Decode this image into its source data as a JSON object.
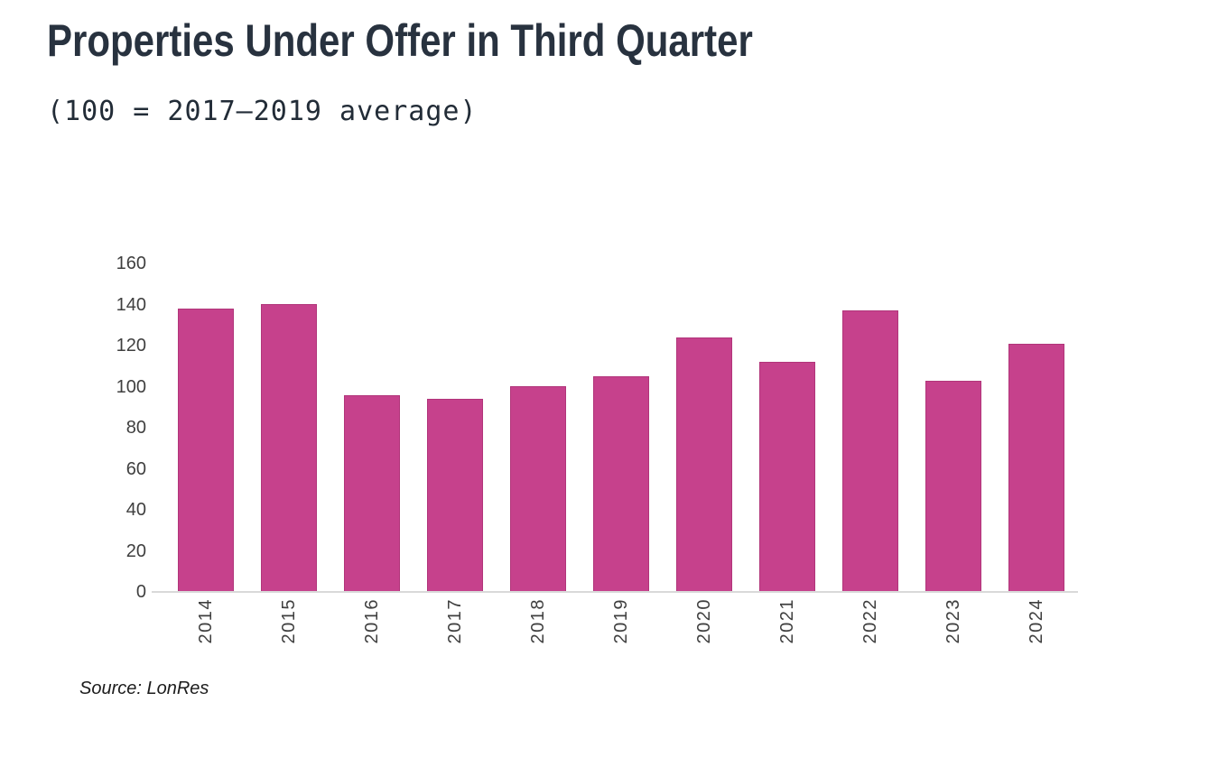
{
  "page": {
    "background_color": "#ffffff"
  },
  "chart_data": {
    "type": "bar",
    "title": "Properties Under Offer in Third Quarter",
    "subtitle": "(100 = 2017–2019 average)",
    "source": "Source: LonRes",
    "categories": [
      "2014",
      "2015",
      "2016",
      "2017",
      "2018",
      "2019",
      "2020",
      "2021",
      "2022",
      "2023",
      "2024"
    ],
    "values": [
      138,
      140,
      96,
      94,
      100,
      105,
      124,
      112,
      137,
      103,
      121
    ],
    "xlabel": "",
    "ylabel": "",
    "ylim": [
      0,
      160
    ],
    "yticks": [
      0,
      20,
      40,
      60,
      80,
      100,
      120,
      140,
      160
    ],
    "grid": false,
    "legend": null,
    "x_label_rotation": -90,
    "bar_color": "#c6418c",
    "bar_border_color": "#b1357a",
    "axis_line_color": "#d9d9d9",
    "tick_label_color": "#3f3f3f",
    "title_color": "#28323f"
  }
}
